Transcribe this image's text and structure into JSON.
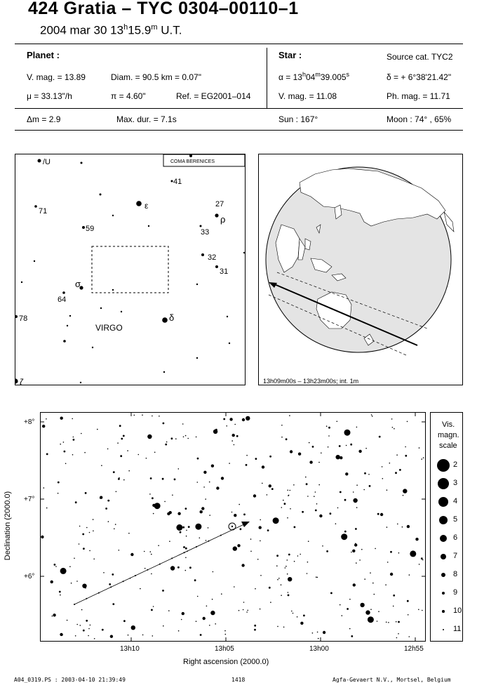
{
  "header": {
    "title": "424 Gratia  –  TYC 0304–00110–1",
    "date_prefix": "2004 mar 30  13",
    "h_sup": "h",
    "min_val": "15.9",
    "m_sup": "m",
    "ut": " U.T."
  },
  "planet": {
    "heading": "Planet :",
    "vmag": "V. mag. = 13.89",
    "diam": "Diam. = 90.5 km = 0.07\"",
    "mu": "μ = 33.13\"/h",
    "pi": "π =  4.60\"",
    "ref": "Ref. = EG2001–014",
    "dm": "Δm = 2.9",
    "maxdur": "Max. dur. = 7.1s"
  },
  "star": {
    "heading": "Star :",
    "source": "Source cat.  TYC2",
    "alpha_a": "α = 13",
    "alpha_h": "h",
    "alpha_b": "04",
    "alpha_m": "m",
    "alpha_c": "39.005",
    "alpha_s": "s",
    "delta": "δ = + 6°38'21.42\"",
    "vmag": "V. mag. = 11.08",
    "phmag": "Ph. mag. = 11.71",
    "sun": "Sun : 167°",
    "moon": "Moon :  74° , 65%"
  },
  "finder": {
    "constellation_box": "COMA BERENICES",
    "constellation": "VIRGO",
    "labels": {
      "l1": "/U",
      "l41": "41",
      "l71": "71",
      "leps": "ε",
      "l27": "27",
      "lrho": "ρ",
      "l59": "59",
      "l33": "33",
      "l32": "32",
      "l31": "31",
      "lsig": "σ",
      "l64": "64",
      "l78": "78",
      "ldel": "δ",
      "lzeta": "ζ"
    }
  },
  "globe": {
    "caption": "13h09m00s – 13h23m00s; int.  1m"
  },
  "starchart": {
    "dec_ticks": [
      "+8°",
      "+7°",
      "+6°"
    ],
    "ra_ticks": [
      "13h10",
      "13h05",
      "13h00",
      "12h55"
    ],
    "xlabel": "Right ascension (2000.0)",
    "ylabel": "Declination (2000.0)"
  },
  "scale": {
    "title1": "Vis.",
    "title2": "magn.",
    "title3": "scale",
    "mags": [
      "2",
      "3",
      "4",
      "5",
      "6",
      "7",
      "8",
      "9",
      "10",
      "11"
    ]
  },
  "footer": {
    "file": "A04_0319.PS : 2003-04-10 21:39:49",
    "num": "1418",
    "org": "Agfa-Gevaert N.V., Mortsel, Belgium"
  }
}
